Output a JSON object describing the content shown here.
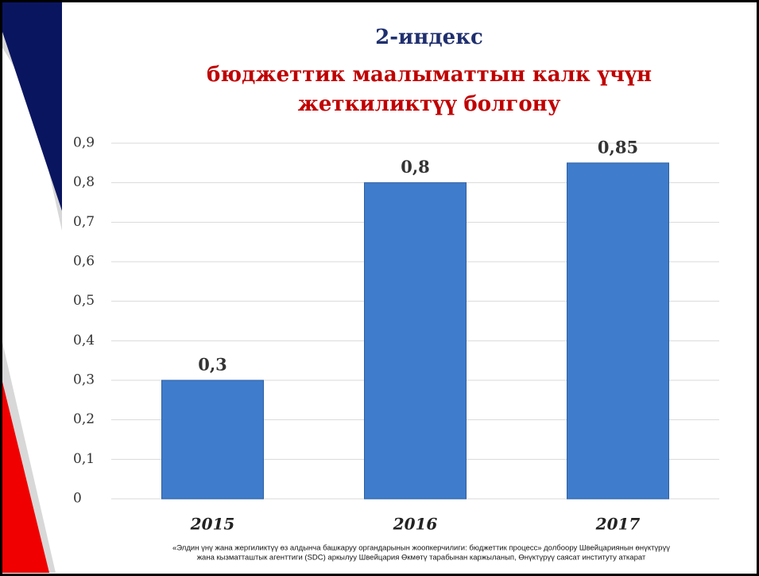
{
  "chart_data": {
    "type": "bar",
    "title": "2-индекс",
    "subtitle": [
      "бюджеттик маалыматтын калк үчүн",
      "жеткиликтүү болгону"
    ],
    "categories": [
      "2015",
      "2016",
      "2017"
    ],
    "values": [
      0.3,
      0.8,
      0.85
    ],
    "value_labels": [
      "0,3",
      "0,8",
      "0,85"
    ],
    "color": "#3f7ccb",
    "ylim": [
      0,
      0.9
    ],
    "yticks": [
      0,
      {
        "value": 0.1,
        "label": "0,1"
      },
      {
        "value": 0.2,
        "label": "0,2"
      },
      {
        "value": 0.3,
        "label": "0,3"
      },
      {
        "value": 0.4,
        "label": "0,4"
      },
      {
        "value": 0.5,
        "label": "0,5"
      },
      {
        "value": 0.6,
        "label": "0,6"
      },
      {
        "value": 0.7,
        "label": "0,7"
      },
      {
        "value": 0.8,
        "label": "0,8"
      },
      {
        "value": 0.9,
        "label": "0,9"
      }
    ],
    "grid": true,
    "footnote": [
      "«Элдин үнү жана жергиликтүү өз алдынча башкаруу органдарынын жоопкерчилиги: бюджеттик процесс» долбоору Швейцариянын өнүктүрүү",
      "жана кызматташтык агенттиги (SDC) аркылуу Швейцария Өкмөтү тарабынан каржыланып, Өнүктүрүү саясат институту аткарат"
    ]
  }
}
